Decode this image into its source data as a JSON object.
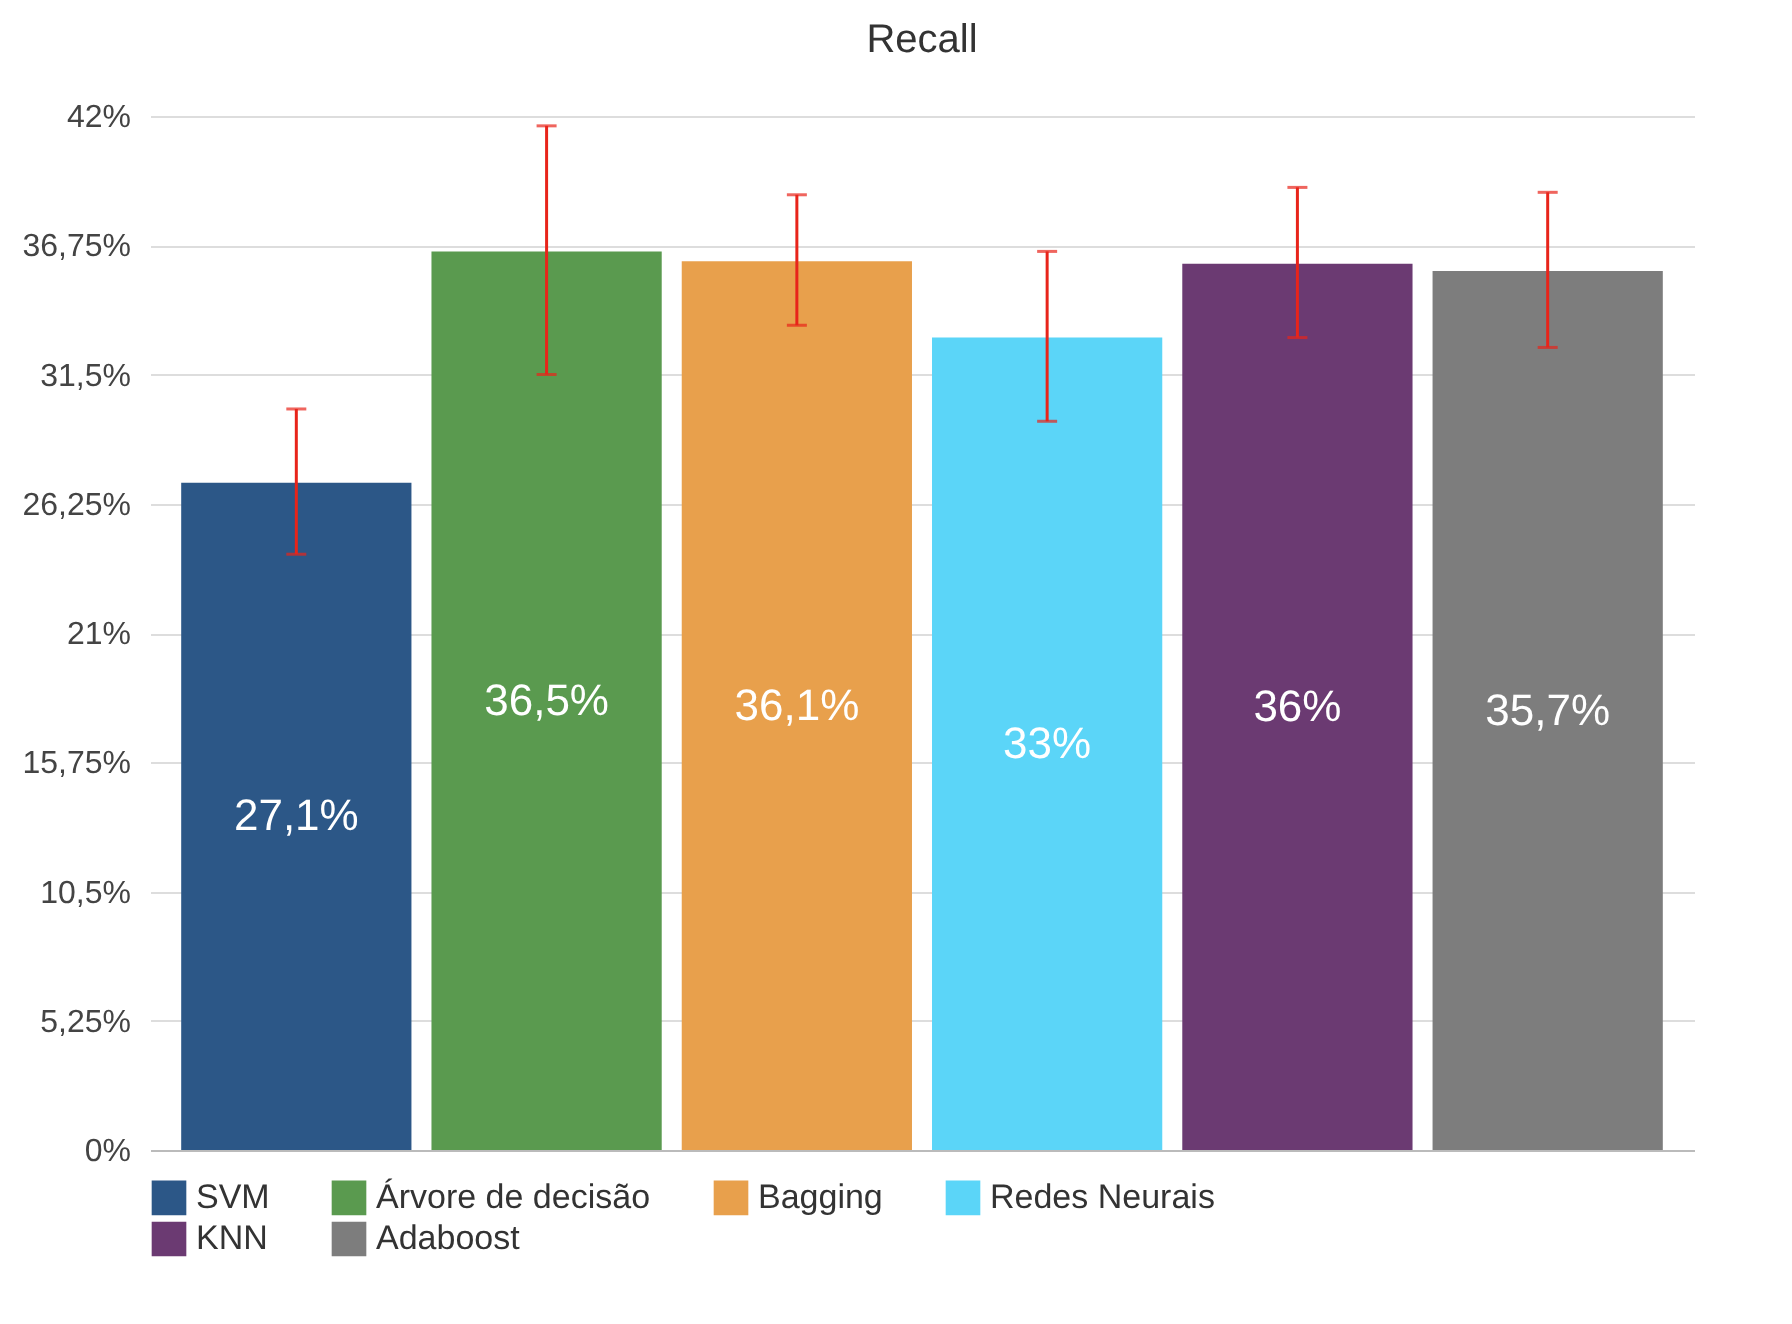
{
  "chart_data": {
    "type": "bar",
    "title": "Recall",
    "categories": [
      null
    ],
    "series": [
      {
        "name": "SVM",
        "color": "#2c5787",
        "values": [
          27.1
        ],
        "value_labels": [
          "27,1%"
        ],
        "errors": [
          [
            24.2,
            30.1
          ]
        ]
      },
      {
        "name": "Árvore de decisão",
        "color": "#5a9a4f",
        "values": [
          36.5
        ],
        "value_labels": [
          "36,5%"
        ],
        "errors": [
          [
            31.5,
            41.6
          ]
        ]
      },
      {
        "name": "Bagging",
        "color": "#e8a04c",
        "values": [
          36.1
        ],
        "value_labels": [
          "36,1%"
        ],
        "errors": [
          [
            33.5,
            38.8
          ]
        ]
      },
      {
        "name": "Redes Neurais",
        "color": "#5bd5f8",
        "values": [
          33
        ],
        "value_labels": [
          "33%"
        ],
        "errors": [
          [
            29.6,
            36.5
          ]
        ]
      },
      {
        "name": "KNN",
        "color": "#6b3a72",
        "values": [
          36
        ],
        "value_labels": [
          "36%"
        ],
        "errors": [
          [
            33,
            39.1
          ]
        ]
      },
      {
        "name": "Adaboost",
        "color": "#7d7d7d",
        "values": [
          35.7
        ],
        "value_labels": [
          "35,7%"
        ],
        "errors": [
          [
            32.6,
            38.9
          ]
        ]
      }
    ],
    "ylim": [
      0,
      42
    ],
    "yticks": [
      {
        "value": 0,
        "label": "0%"
      },
      {
        "value": 5.25,
        "label": "5,25%"
      },
      {
        "value": 10.5,
        "label": "10,5%"
      },
      {
        "value": 15.75,
        "label": "15,75%"
      },
      {
        "value": 21,
        "label": "21%"
      },
      {
        "value": 26.25,
        "label": "26,25%"
      },
      {
        "value": 31.5,
        "label": "31,5%"
      },
      {
        "value": 36.75,
        "label": "36,75%"
      },
      {
        "value": 42,
        "label": "42%"
      }
    ],
    "grid": "y",
    "legend": "bottom",
    "tick_labels": "y"
  }
}
